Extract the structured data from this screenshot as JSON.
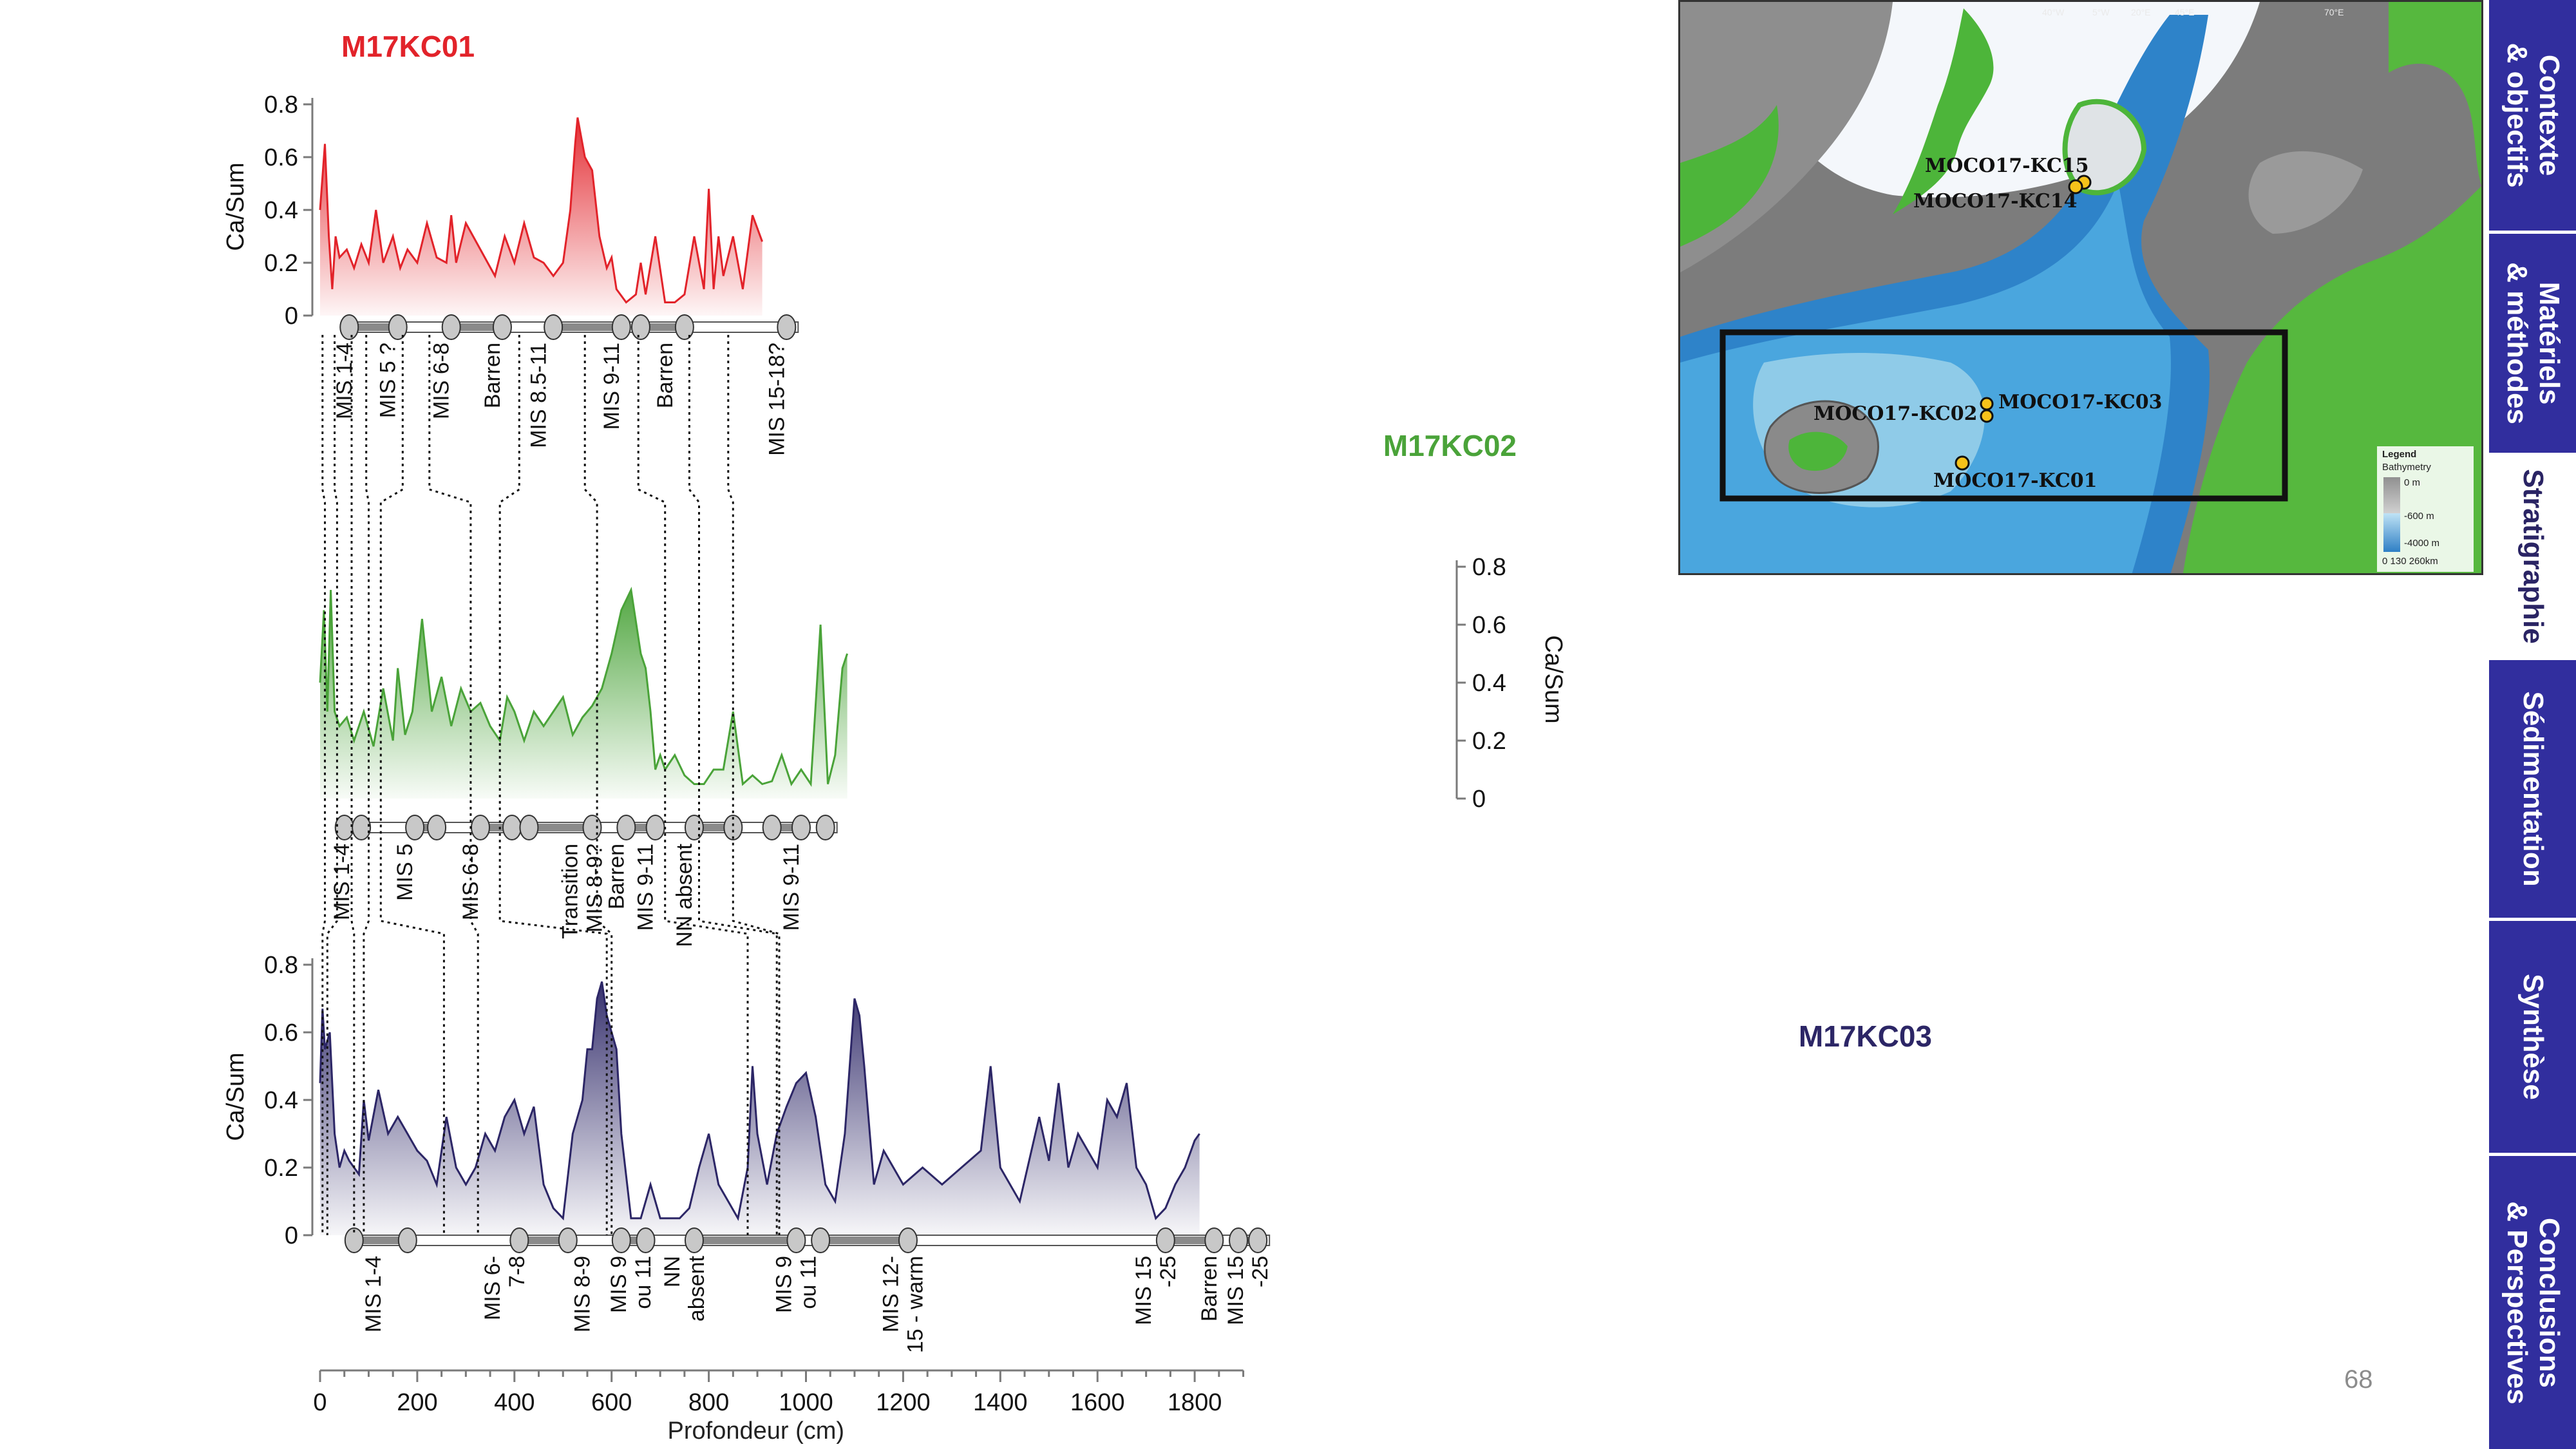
{
  "chart_data": [
    {
      "type": "area",
      "title": "M17KC01",
      "ylabel": "Ca/Sum",
      "ylim": [
        0,
        0.8
      ],
      "yticks": [
        "0",
        "0.2",
        "0.4",
        "0.6",
        "0.8"
      ],
      "color": "#e2232a",
      "series": [
        {
          "name": "M17KC01",
          "x": [
            0,
            10,
            18,
            25,
            32,
            40,
            55,
            70,
            85,
            100,
            115,
            130,
            150,
            165,
            180,
            200,
            220,
            240,
            260,
            270,
            280,
            300,
            330,
            360,
            380,
            400,
            420,
            440,
            460,
            480,
            500,
            515,
            525,
            530,
            545,
            560,
            575,
            590,
            600,
            610,
            630,
            650,
            660,
            670,
            690,
            710,
            730,
            750,
            770,
            790,
            800,
            810,
            820,
            830,
            850,
            870,
            890,
            910
          ],
          "values": [
            0.4,
            0.65,
            0.3,
            0.1,
            0.3,
            0.22,
            0.25,
            0.18,
            0.27,
            0.2,
            0.4,
            0.2,
            0.3,
            0.18,
            0.25,
            0.2,
            0.35,
            0.22,
            0.2,
            0.38,
            0.2,
            0.35,
            0.25,
            0.15,
            0.3,
            0.2,
            0.35,
            0.22,
            0.2,
            0.15,
            0.2,
            0.4,
            0.65,
            0.75,
            0.6,
            0.55,
            0.3,
            0.18,
            0.22,
            0.1,
            0.05,
            0.08,
            0.2,
            0.08,
            0.3,
            0.05,
            0.05,
            0.08,
            0.3,
            0.1,
            0.48,
            0.1,
            0.3,
            0.15,
            0.3,
            0.1,
            0.38,
            0.28
          ]
        }
      ],
      "strat": {
        "dots": [
          60,
          160,
          270,
          375,
          480,
          620,
          660,
          750,
          960
        ],
        "labels": [
          {
            "x": 70,
            "lines": [
              "MIS 1-4"
            ]
          },
          {
            "x": 160,
            "lines": [
              "MIS 5 ?"
            ]
          },
          {
            "x": 270,
            "lines": [
              "MIS 6-8"
            ]
          },
          {
            "x": 375,
            "lines": [
              "Barren"
            ]
          },
          {
            "x": 470,
            "lines": [
              "MIS 8.5-11"
            ]
          },
          {
            "x": 620,
            "lines": [
              "MIS 9-11"
            ]
          },
          {
            "x": 730,
            "lines": [
              "Barren"
            ]
          },
          {
            "x": 960,
            "lines": [
              "MIS 15-18?"
            ]
          }
        ]
      }
    },
    {
      "type": "area",
      "title": "M17KC02",
      "ylabel": "Ca/Sum",
      "ylim": [
        0,
        0.8
      ],
      "yticks": [
        "0",
        "0.2",
        "0.4",
        "0.6",
        "0.8"
      ],
      "color": "#4aa339",
      "series": [
        {
          "name": "M17KC02",
          "x": [
            0,
            8,
            15,
            22,
            30,
            40,
            55,
            70,
            90,
            110,
            130,
            150,
            160,
            175,
            190,
            210,
            230,
            250,
            270,
            290,
            310,
            330,
            350,
            370,
            385,
            400,
            420,
            440,
            460,
            480,
            500,
            520,
            540,
            560,
            580,
            600,
            620,
            640,
            660,
            670,
            680,
            690,
            700,
            710,
            730,
            750,
            770,
            790,
            810,
            830,
            850,
            870,
            890,
            910,
            930,
            950,
            970,
            990,
            1010,
            1030,
            1045,
            1060,
            1075,
            1085
          ],
          "values": [
            0.4,
            0.65,
            0.3,
            0.72,
            0.3,
            0.25,
            0.28,
            0.2,
            0.3,
            0.18,
            0.38,
            0.2,
            0.45,
            0.22,
            0.3,
            0.62,
            0.3,
            0.42,
            0.25,
            0.38,
            0.3,
            0.33,
            0.25,
            0.2,
            0.35,
            0.3,
            0.2,
            0.3,
            0.25,
            0.3,
            0.35,
            0.22,
            0.28,
            0.32,
            0.38,
            0.5,
            0.65,
            0.72,
            0.5,
            0.45,
            0.3,
            0.1,
            0.15,
            0.1,
            0.15,
            0.08,
            0.05,
            0.05,
            0.1,
            0.1,
            0.3,
            0.05,
            0.08,
            0.05,
            0.06,
            0.15,
            0.05,
            0.1,
            0.05,
            0.6,
            0.05,
            0.15,
            0.45,
            0.5
          ]
        }
      ],
      "strat": {
        "dots": [
          50,
          85,
          195,
          240,
          330,
          395,
          430,
          560,
          630,
          690,
          770,
          850,
          930,
          990,
          1040
        ],
        "labels": [
          {
            "x": 65,
            "lines": [
              "MIS 1-4"
            ]
          },
          {
            "x": 195,
            "lines": [
              "MIS 5"
            ]
          },
          {
            "x": 330,
            "lines": [
              "MIS 6-8"
            ]
          },
          {
            "x": 560,
            "lines": [
              "Transition",
              "MIS 8-9?"
            ]
          },
          {
            "x": 630,
            "lines": [
              "Barren"
            ]
          },
          {
            "x": 690,
            "lines": [
              "MIS 9-11"
            ]
          },
          {
            "x": 770,
            "lines": [
              "NN absent"
            ]
          },
          {
            "x": 990,
            "lines": [
              "MIS 9-11"
            ]
          }
        ]
      }
    },
    {
      "type": "area",
      "title": "M17KC03",
      "ylabel": "Ca/Sum",
      "ylim": [
        0,
        0.8
      ],
      "yticks": [
        "0",
        "0.2",
        "0.4",
        "0.6",
        "0.8"
      ],
      "xlabel": "Profondeur (cm)",
      "xlim": [
        0,
        1900
      ],
      "xticks": [
        "0",
        "200",
        "400",
        "600",
        "800",
        "1000",
        "1200",
        "1400",
        "1600",
        "1800"
      ],
      "color": "#2c2666",
      "series": [
        {
          "name": "M17KC03",
          "x": [
            0,
            5,
            10,
            20,
            30,
            40,
            50,
            60,
            70,
            80,
            90,
            100,
            120,
            140,
            160,
            180,
            200,
            220,
            240,
            260,
            280,
            300,
            320,
            340,
            360,
            380,
            400,
            420,
            440,
            460,
            480,
            500,
            520,
            540,
            550,
            560,
            570,
            580,
            590,
            600,
            610,
            620,
            640,
            660,
            680,
            700,
            720,
            740,
            760,
            780,
            800,
            820,
            840,
            860,
            880,
            890,
            900,
            920,
            940,
            960,
            980,
            1000,
            1020,
            1040,
            1060,
            1080,
            1100,
            1110,
            1120,
            1140,
            1160,
            1180,
            1200,
            1240,
            1280,
            1320,
            1360,
            1380,
            1400,
            1440,
            1480,
            1500,
            1520,
            1540,
            1560,
            1600,
            1620,
            1640,
            1660,
            1680,
            1700,
            1720,
            1740,
            1760,
            1780,
            1800,
            1810
          ],
          "values": [
            0.45,
            0.67,
            0.55,
            0.6,
            0.3,
            0.2,
            0.25,
            0.22,
            0.2,
            0.18,
            0.4,
            0.28,
            0.43,
            0.3,
            0.35,
            0.3,
            0.25,
            0.22,
            0.15,
            0.35,
            0.2,
            0.15,
            0.2,
            0.3,
            0.25,
            0.35,
            0.4,
            0.3,
            0.38,
            0.15,
            0.08,
            0.05,
            0.3,
            0.4,
            0.55,
            0.55,
            0.7,
            0.75,
            0.65,
            0.6,
            0.55,
            0.3,
            0.05,
            0.05,
            0.15,
            0.05,
            0.05,
            0.05,
            0.08,
            0.2,
            0.3,
            0.15,
            0.1,
            0.05,
            0.2,
            0.5,
            0.3,
            0.15,
            0.3,
            0.38,
            0.45,
            0.48,
            0.35,
            0.15,
            0.1,
            0.3,
            0.7,
            0.65,
            0.5,
            0.15,
            0.25,
            0.2,
            0.15,
            0.2,
            0.15,
            0.2,
            0.25,
            0.5,
            0.2,
            0.1,
            0.35,
            0.22,
            0.45,
            0.2,
            0.3,
            0.2,
            0.4,
            0.35,
            0.45,
            0.2,
            0.15,
            0.05,
            0.08,
            0.15,
            0.2,
            0.28,
            0.3
          ]
        }
      ],
      "strat": {
        "dots": [
          70,
          180,
          410,
          510,
          620,
          670,
          770,
          980,
          1030,
          1210,
          1740,
          1840,
          1890,
          1930
        ],
        "labels": [
          {
            "x": 130,
            "lines": [
              "MIS 1-4"
            ]
          },
          {
            "x": 400,
            "lines": [
              "MIS 6-",
              "7-8"
            ]
          },
          {
            "x": 560,
            "lines": [
              "MIS 8-9"
            ]
          },
          {
            "x": 660,
            "lines": [
              "MIS 9",
              "ou 11"
            ]
          },
          {
            "x": 770,
            "lines": [
              "NN",
              "absent"
            ]
          },
          {
            "x": 1000,
            "lines": [
              "MIS 9",
              "ou 11"
            ]
          },
          {
            "x": 1220,
            "lines": [
              "MIS 12-",
              "15 - warm"
            ]
          },
          {
            "x": 1740,
            "lines": [
              "MIS 15",
              "-25"
            ]
          },
          {
            "x": 1850,
            "lines": [
              "Barren"
            ]
          },
          {
            "x": 1930,
            "lines": [
              "MIS 15",
              "-25"
            ]
          }
        ]
      }
    }
  ],
  "nav": {
    "items": [
      {
        "lines": [
          "Contexte",
          "& objectifs"
        ],
        "active": false
      },
      {
        "lines": [
          "Matériels",
          "& méthodes"
        ],
        "active": false
      },
      {
        "lines": [
          "Stratigraphie"
        ],
        "active": true
      },
      {
        "lines": [
          "Sédimentation"
        ],
        "active": false
      },
      {
        "lines": [
          "Synthèse"
        ],
        "active": false
      },
      {
        "lines": [
          "Conclusions",
          "& Perspectives"
        ],
        "active": false
      }
    ]
  },
  "page_number": "68",
  "map": {
    "core_labels": [
      "MOCO17-KC15",
      "MOCO17-KC14",
      "MOCO17-KC02",
      "MOCO17-KC03",
      "MOCO17-KC01"
    ],
    "degree_labels": [
      "40°W",
      "5°W",
      "20°E",
      "45°E",
      "70°E"
    ],
    "legend": {
      "title": "Legend",
      "subtitle": "Bathymetry",
      "levels": [
        "0 m",
        "-600 m",
        "-4000 m"
      ],
      "scale": "0  130  260km"
    }
  }
}
